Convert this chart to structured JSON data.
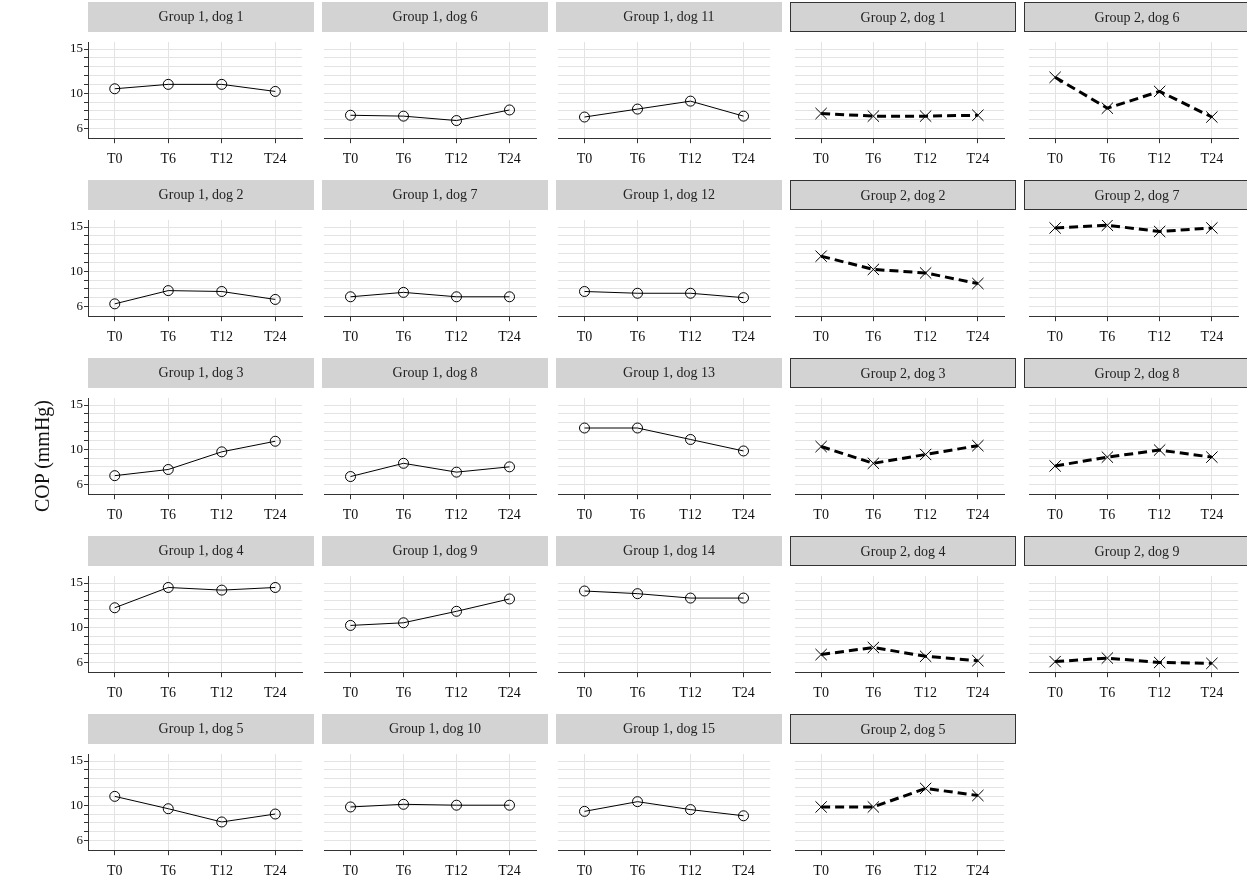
{
  "chart_data": [
    {
      "type": "line",
      "title": "Group 1, dog 1",
      "categories": [
        "T0",
        "T6",
        "T12",
        "T24"
      ],
      "series": [
        {
          "color": "#000000",
          "values": [
            10.5,
            11.0,
            11.0,
            10.2
          ]
        }
      ],
      "ylim": [
        4.9,
        15.8
      ],
      "yticks": [
        6,
        {
          "value": 7,
          "label": null
        },
        {
          "value": 8,
          "label": null
        },
        {
          "value": 9,
          "label": null
        },
        10,
        {
          "value": 11,
          "label": null
        },
        {
          "value": 12,
          "label": null
        },
        {
          "value": 13,
          "label": null
        },
        {
          "value": 14,
          "label": null
        },
        15
      ],
      "grid": true,
      "marker": "circle",
      "line_style": "solid"
    },
    {
      "type": "line",
      "title": "Group 1, dog 6",
      "categories": [
        "T0",
        "T6",
        "T12",
        "T24"
      ],
      "series": [
        {
          "color": "#000000",
          "values": [
            7.5,
            7.4,
            6.9,
            8.1
          ]
        }
      ],
      "ylim": [
        4.9,
        15.8
      ],
      "yticks": [
        6,
        {
          "value": 7,
          "label": null
        },
        {
          "value": 8,
          "label": null
        },
        {
          "value": 9,
          "label": null
        },
        10,
        {
          "value": 11,
          "label": null
        },
        {
          "value": 12,
          "label": null
        },
        {
          "value": 13,
          "label": null
        },
        {
          "value": 14,
          "label": null
        },
        15
      ],
      "grid": true,
      "marker": "circle",
      "line_style": "solid",
      "tick_labels": "x"
    },
    {
      "type": "line",
      "title": "Group 1, dog 11",
      "categories": [
        "T0",
        "T6",
        "T12",
        "T24"
      ],
      "series": [
        {
          "color": "#000000",
          "values": [
            7.3,
            8.2,
            9.1,
            7.4
          ]
        }
      ],
      "ylim": [
        4.9,
        15.8
      ],
      "yticks": [
        6,
        {
          "value": 7,
          "label": null
        },
        {
          "value": 8,
          "label": null
        },
        {
          "value": 9,
          "label": null
        },
        10,
        {
          "value": 11,
          "label": null
        },
        {
          "value": 12,
          "label": null
        },
        {
          "value": 13,
          "label": null
        },
        {
          "value": 14,
          "label": null
        },
        15
      ],
      "grid": true,
      "marker": "circle",
      "line_style": "solid",
      "tick_labels": "x"
    },
    {
      "type": "line",
      "title": "Group 2, dog 1",
      "categories": [
        "T0",
        "T6",
        "T12",
        "T24"
      ],
      "series": [
        {
          "color": "#000000",
          "values": [
            7.7,
            7.4,
            7.4,
            7.5
          ]
        }
      ],
      "ylim": [
        4.9,
        15.8
      ],
      "yticks": [
        6,
        {
          "value": 7,
          "label": null
        },
        {
          "value": 8,
          "label": null
        },
        {
          "value": 9,
          "label": null
        },
        10,
        {
          "value": 11,
          "label": null
        },
        {
          "value": 12,
          "label": null
        },
        {
          "value": 13,
          "label": null
        },
        {
          "value": 14,
          "label": null
        },
        15
      ],
      "grid": true,
      "marker": "cross",
      "line_style": "dashed",
      "tick_labels": "x"
    },
    {
      "type": "line",
      "title": "Group 2, dog 6",
      "categories": [
        "T0",
        "T6",
        "T12",
        "T24"
      ],
      "series": [
        {
          "color": "#000000",
          "values": [
            11.8,
            8.3,
            10.2,
            7.3
          ]
        }
      ],
      "ylim": [
        4.9,
        15.8
      ],
      "yticks": [
        6,
        {
          "value": 7,
          "label": null
        },
        {
          "value": 8,
          "label": null
        },
        {
          "value": 9,
          "label": null
        },
        10,
        {
          "value": 11,
          "label": null
        },
        {
          "value": 12,
          "label": null
        },
        {
          "value": 13,
          "label": null
        },
        {
          "value": 14,
          "label": null
        },
        15
      ],
      "grid": true,
      "marker": "cross",
      "line_style": "dashed",
      "tick_labels": "x"
    },
    {
      "type": "line",
      "title": "Group 1, dog 2",
      "categories": [
        "T0",
        "T6",
        "T12",
        "T24"
      ],
      "series": [
        {
          "color": "#000000",
          "values": [
            6.3,
            7.8,
            7.7,
            6.8
          ]
        }
      ],
      "ylim": [
        4.9,
        15.8
      ],
      "yticks": [
        6,
        {
          "value": 7,
          "label": null
        },
        {
          "value": 8,
          "label": null
        },
        {
          "value": 9,
          "label": null
        },
        10,
        {
          "value": 11,
          "label": null
        },
        {
          "value": 12,
          "label": null
        },
        {
          "value": 13,
          "label": null
        },
        {
          "value": 14,
          "label": null
        },
        15
      ],
      "grid": true,
      "marker": "circle",
      "line_style": "solid"
    },
    {
      "type": "line",
      "title": "Group 1, dog 7",
      "categories": [
        "T0",
        "T6",
        "T12",
        "T24"
      ],
      "series": [
        {
          "color": "#000000",
          "values": [
            7.1,
            7.6,
            7.1,
            7.1
          ]
        }
      ],
      "ylim": [
        4.9,
        15.8
      ],
      "yticks": [
        6,
        {
          "value": 7,
          "label": null
        },
        {
          "value": 8,
          "label": null
        },
        {
          "value": 9,
          "label": null
        },
        10,
        {
          "value": 11,
          "label": null
        },
        {
          "value": 12,
          "label": null
        },
        {
          "value": 13,
          "label": null
        },
        {
          "value": 14,
          "label": null
        },
        15
      ],
      "grid": true,
      "marker": "circle",
      "line_style": "solid",
      "tick_labels": "x"
    },
    {
      "type": "line",
      "title": "Group 1, dog 12",
      "categories": [
        "T0",
        "T6",
        "T12",
        "T24"
      ],
      "series": [
        {
          "color": "#000000",
          "values": [
            7.7,
            7.5,
            7.5,
            7.0
          ]
        }
      ],
      "ylim": [
        4.9,
        15.8
      ],
      "yticks": [
        6,
        {
          "value": 7,
          "label": null
        },
        {
          "value": 8,
          "label": null
        },
        {
          "value": 9,
          "label": null
        },
        10,
        {
          "value": 11,
          "label": null
        },
        {
          "value": 12,
          "label": null
        },
        {
          "value": 13,
          "label": null
        },
        {
          "value": 14,
          "label": null
        },
        15
      ],
      "grid": true,
      "marker": "circle",
      "line_style": "solid",
      "tick_labels": "x"
    },
    {
      "type": "line",
      "title": "Group 2, dog 2",
      "categories": [
        "T0",
        "T6",
        "T12",
        "T24"
      ],
      "series": [
        {
          "color": "#000000",
          "values": [
            11.7,
            10.2,
            9.8,
            8.6
          ]
        }
      ],
      "ylim": [
        4.9,
        15.8
      ],
      "yticks": [
        6,
        {
          "value": 7,
          "label": null
        },
        {
          "value": 8,
          "label": null
        },
        {
          "value": 9,
          "label": null
        },
        10,
        {
          "value": 11,
          "label": null
        },
        {
          "value": 12,
          "label": null
        },
        {
          "value": 13,
          "label": null
        },
        {
          "value": 14,
          "label": null
        },
        15
      ],
      "grid": true,
      "marker": "cross",
      "line_style": "dashed",
      "tick_labels": "x"
    },
    {
      "type": "line",
      "title": "Group 2, dog 7",
      "categories": [
        "T0",
        "T6",
        "T12",
        "T24"
      ],
      "series": [
        {
          "color": "#000000",
          "values": [
            14.9,
            15.2,
            14.5,
            14.9
          ]
        }
      ],
      "ylim": [
        4.9,
        15.8
      ],
      "yticks": [
        6,
        {
          "value": 7,
          "label": null
        },
        {
          "value": 8,
          "label": null
        },
        {
          "value": 9,
          "label": null
        },
        10,
        {
          "value": 11,
          "label": null
        },
        {
          "value": 12,
          "label": null
        },
        {
          "value": 13,
          "label": null
        },
        {
          "value": 14,
          "label": null
        },
        15
      ],
      "grid": true,
      "marker": "cross",
      "line_style": "dashed",
      "tick_labels": "x"
    },
    {
      "type": "line",
      "title": "Group 1, dog 3",
      "ylabel": "COP (mmHg)",
      "categories": [
        "T0",
        "T6",
        "T12",
        "T24"
      ],
      "series": [
        {
          "color": "#000000",
          "values": [
            7.0,
            7.7,
            9.7,
            10.9
          ]
        }
      ],
      "ylim": [
        4.9,
        15.8
      ],
      "yticks": [
        6,
        {
          "value": 7,
          "label": null
        },
        {
          "value": 8,
          "label": null
        },
        {
          "value": 9,
          "label": null
        },
        10,
        {
          "value": 11,
          "label": null
        },
        {
          "value": 12,
          "label": null
        },
        {
          "value": 13,
          "label": null
        },
        {
          "value": 14,
          "label": null
        },
        15
      ],
      "grid": true,
      "marker": "circle",
      "line_style": "solid"
    },
    {
      "type": "line",
      "title": "Group 1, dog 8",
      "categories": [
        "T0",
        "T6",
        "T12",
        "T24"
      ],
      "series": [
        {
          "color": "#000000",
          "values": [
            6.9,
            8.4,
            7.4,
            8.0
          ]
        }
      ],
      "ylim": [
        4.9,
        15.8
      ],
      "yticks": [
        6,
        {
          "value": 7,
          "label": null
        },
        {
          "value": 8,
          "label": null
        },
        {
          "value": 9,
          "label": null
        },
        10,
        {
          "value": 11,
          "label": null
        },
        {
          "value": 12,
          "label": null
        },
        {
          "value": 13,
          "label": null
        },
        {
          "value": 14,
          "label": null
        },
        15
      ],
      "grid": true,
      "marker": "circle",
      "line_style": "solid",
      "tick_labels": "x"
    },
    {
      "type": "line",
      "title": "Group 1, dog 13",
      "categories": [
        "T0",
        "T6",
        "T12",
        "T24"
      ],
      "series": [
        {
          "color": "#000000",
          "values": [
            12.4,
            12.4,
            11.1,
            9.8
          ]
        }
      ],
      "ylim": [
        4.9,
        15.8
      ],
      "yticks": [
        6,
        {
          "value": 7,
          "label": null
        },
        {
          "value": 8,
          "label": null
        },
        {
          "value": 9,
          "label": null
        },
        10,
        {
          "value": 11,
          "label": null
        },
        {
          "value": 12,
          "label": null
        },
        {
          "value": 13,
          "label": null
        },
        {
          "value": 14,
          "label": null
        },
        15
      ],
      "grid": true,
      "marker": "circle",
      "line_style": "solid",
      "tick_labels": "x"
    },
    {
      "type": "line",
      "title": "Group 2, dog 3",
      "categories": [
        "T0",
        "T6",
        "T12",
        "T24"
      ],
      "series": [
        {
          "color": "#000000",
          "values": [
            10.3,
            8.4,
            9.4,
            10.4
          ]
        }
      ],
      "ylim": [
        4.9,
        15.8
      ],
      "yticks": [
        6,
        {
          "value": 7,
          "label": null
        },
        {
          "value": 8,
          "label": null
        },
        {
          "value": 9,
          "label": null
        },
        10,
        {
          "value": 11,
          "label": null
        },
        {
          "value": 12,
          "label": null
        },
        {
          "value": 13,
          "label": null
        },
        {
          "value": 14,
          "label": null
        },
        15
      ],
      "grid": true,
      "marker": "cross",
      "line_style": "dashed",
      "tick_labels": "x"
    },
    {
      "type": "line",
      "title": "Group 2, dog 8",
      "categories": [
        "T0",
        "T6",
        "T12",
        "T24"
      ],
      "series": [
        {
          "color": "#000000",
          "values": [
            8.1,
            9.1,
            9.9,
            9.1
          ]
        }
      ],
      "ylim": [
        4.9,
        15.8
      ],
      "yticks": [
        6,
        {
          "value": 7,
          "label": null
        },
        {
          "value": 8,
          "label": null
        },
        {
          "value": 9,
          "label": null
        },
        10,
        {
          "value": 11,
          "label": null
        },
        {
          "value": 12,
          "label": null
        },
        {
          "value": 13,
          "label": null
        },
        {
          "value": 14,
          "label": null
        },
        15
      ],
      "grid": true,
      "marker": "cross",
      "line_style": "dashed",
      "tick_labels": "x"
    },
    {
      "type": "line",
      "title": "Group 1, dog 4",
      "categories": [
        "T0",
        "T6",
        "T12",
        "T24"
      ],
      "series": [
        {
          "color": "#000000",
          "values": [
            12.2,
            14.5,
            14.2,
            14.5
          ]
        }
      ],
      "ylim": [
        4.9,
        15.8
      ],
      "yticks": [
        6,
        {
          "value": 7,
          "label": null
        },
        {
          "value": 8,
          "label": null
        },
        {
          "value": 9,
          "label": null
        },
        10,
        {
          "value": 11,
          "label": null
        },
        {
          "value": 12,
          "label": null
        },
        {
          "value": 13,
          "label": null
        },
        {
          "value": 14,
          "label": null
        },
        15
      ],
      "grid": true,
      "marker": "circle",
      "line_style": "solid"
    },
    {
      "type": "line",
      "title": "Group 1, dog 9",
      "categories": [
        "T0",
        "T6",
        "T12",
        "T24"
      ],
      "series": [
        {
          "color": "#000000",
          "values": [
            10.2,
            10.5,
            11.8,
            13.2
          ]
        }
      ],
      "ylim": [
        4.9,
        15.8
      ],
      "yticks": [
        6,
        {
          "value": 7,
          "label": null
        },
        {
          "value": 8,
          "label": null
        },
        {
          "value": 9,
          "label": null
        },
        10,
        {
          "value": 11,
          "label": null
        },
        {
          "value": 12,
          "label": null
        },
        {
          "value": 13,
          "label": null
        },
        {
          "value": 14,
          "label": null
        },
        15
      ],
      "grid": true,
      "marker": "circle",
      "line_style": "solid",
      "tick_labels": "x"
    },
    {
      "type": "line",
      "title": "Group 1, dog 14",
      "categories": [
        "T0",
        "T6",
        "T12",
        "T24"
      ],
      "series": [
        {
          "color": "#000000",
          "values": [
            14.1,
            13.8,
            13.3,
            13.3
          ]
        }
      ],
      "ylim": [
        4.9,
        15.8
      ],
      "yticks": [
        6,
        {
          "value": 7,
          "label": null
        },
        {
          "value": 8,
          "label": null
        },
        {
          "value": 9,
          "label": null
        },
        10,
        {
          "value": 11,
          "label": null
        },
        {
          "value": 12,
          "label": null
        },
        {
          "value": 13,
          "label": null
        },
        {
          "value": 14,
          "label": null
        },
        15
      ],
      "grid": true,
      "marker": "circle",
      "line_style": "solid",
      "tick_labels": "x"
    },
    {
      "type": "line",
      "title": "Group 2, dog 4",
      "categories": [
        "T0",
        "T6",
        "T12",
        "T24"
      ],
      "series": [
        {
          "color": "#000000",
          "values": [
            6.9,
            7.7,
            6.7,
            6.2
          ]
        }
      ],
      "ylim": [
        4.9,
        15.8
      ],
      "yticks": [
        6,
        {
          "value": 7,
          "label": null
        },
        {
          "value": 8,
          "label": null
        },
        {
          "value": 9,
          "label": null
        },
        10,
        {
          "value": 11,
          "label": null
        },
        {
          "value": 12,
          "label": null
        },
        {
          "value": 13,
          "label": null
        },
        {
          "value": 14,
          "label": null
        },
        15
      ],
      "grid": true,
      "marker": "cross",
      "line_style": "dashed",
      "tick_labels": "x"
    },
    {
      "type": "line",
      "title": "Group 2, dog 9",
      "categories": [
        "T0",
        "T6",
        "T12",
        "T24"
      ],
      "series": [
        {
          "color": "#000000",
          "values": [
            6.1,
            6.5,
            6.0,
            5.9
          ]
        }
      ],
      "ylim": [
        4.9,
        15.8
      ],
      "yticks": [
        6,
        {
          "value": 7,
          "label": null
        },
        {
          "value": 8,
          "label": null
        },
        {
          "value": 9,
          "label": null
        },
        10,
        {
          "value": 11,
          "label": null
        },
        {
          "value": 12,
          "label": null
        },
        {
          "value": 13,
          "label": null
        },
        {
          "value": 14,
          "label": null
        },
        15
      ],
      "grid": true,
      "marker": "cross",
      "line_style": "dashed",
      "tick_labels": "x"
    },
    {
      "type": "line",
      "title": "Group 1, dog 5",
      "categories": [
        "T0",
        "T6",
        "T12",
        "T24"
      ],
      "series": [
        {
          "color": "#000000",
          "values": [
            11.0,
            9.6,
            8.1,
            9.0
          ]
        }
      ],
      "ylim": [
        4.9,
        15.8
      ],
      "yticks": [
        6,
        {
          "value": 7,
          "label": null
        },
        {
          "value": 8,
          "label": null
        },
        {
          "value": 9,
          "label": null
        },
        10,
        {
          "value": 11,
          "label": null
        },
        {
          "value": 12,
          "label": null
        },
        {
          "value": 13,
          "label": null
        },
        {
          "value": 14,
          "label": null
        },
        15
      ],
      "grid": true,
      "marker": "circle",
      "line_style": "solid"
    },
    {
      "type": "line",
      "title": "Group 1, dog 10",
      "categories": [
        "T0",
        "T6",
        "T12",
        "T24"
      ],
      "series": [
        {
          "color": "#000000",
          "values": [
            9.8,
            10.1,
            10.0,
            10.0
          ]
        }
      ],
      "ylim": [
        4.9,
        15.8
      ],
      "yticks": [
        6,
        {
          "value": 7,
          "label": null
        },
        {
          "value": 8,
          "label": null
        },
        {
          "value": 9,
          "label": null
        },
        10,
        {
          "value": 11,
          "label": null
        },
        {
          "value": 12,
          "label": null
        },
        {
          "value": 13,
          "label": null
        },
        {
          "value": 14,
          "label": null
        },
        15
      ],
      "grid": true,
      "marker": "circle",
      "line_style": "solid",
      "tick_labels": "x"
    },
    {
      "type": "line",
      "title": "Group 1, dog 15",
      "categories": [
        "T0",
        "T6",
        "T12",
        "T24"
      ],
      "series": [
        {
          "color": "#000000",
          "values": [
            9.3,
            10.4,
            9.5,
            8.8
          ]
        }
      ],
      "ylim": [
        4.9,
        15.8
      ],
      "yticks": [
        6,
        {
          "value": 7,
          "label": null
        },
        {
          "value": 8,
          "label": null
        },
        {
          "value": 9,
          "label": null
        },
        10,
        {
          "value": 11,
          "label": null
        },
        {
          "value": 12,
          "label": null
        },
        {
          "value": 13,
          "label": null
        },
        {
          "value": 14,
          "label": null
        },
        15
      ],
      "grid": true,
      "marker": "circle",
      "line_style": "solid",
      "tick_labels": "x"
    },
    {
      "type": "line",
      "title": "Group 2, dog 5",
      "categories": [
        "T0",
        "T6",
        "T12",
        "T24"
      ],
      "series": [
        {
          "color": "#000000",
          "values": [
            9.8,
            9.8,
            11.9,
            11.1
          ]
        }
      ],
      "ylim": [
        4.9,
        15.8
      ],
      "yticks": [
        6,
        {
          "value": 7,
          "label": null
        },
        {
          "value": 8,
          "label": null
        },
        {
          "value": 9,
          "label": null
        },
        10,
        {
          "value": 11,
          "label": null
        },
        {
          "value": 12,
          "label": null
        },
        {
          "value": 13,
          "label": null
        },
        {
          "value": 14,
          "label": null
        },
        15
      ],
      "grid": true,
      "marker": "cross",
      "line_style": "dashed",
      "tick_labels": "x"
    }
  ]
}
